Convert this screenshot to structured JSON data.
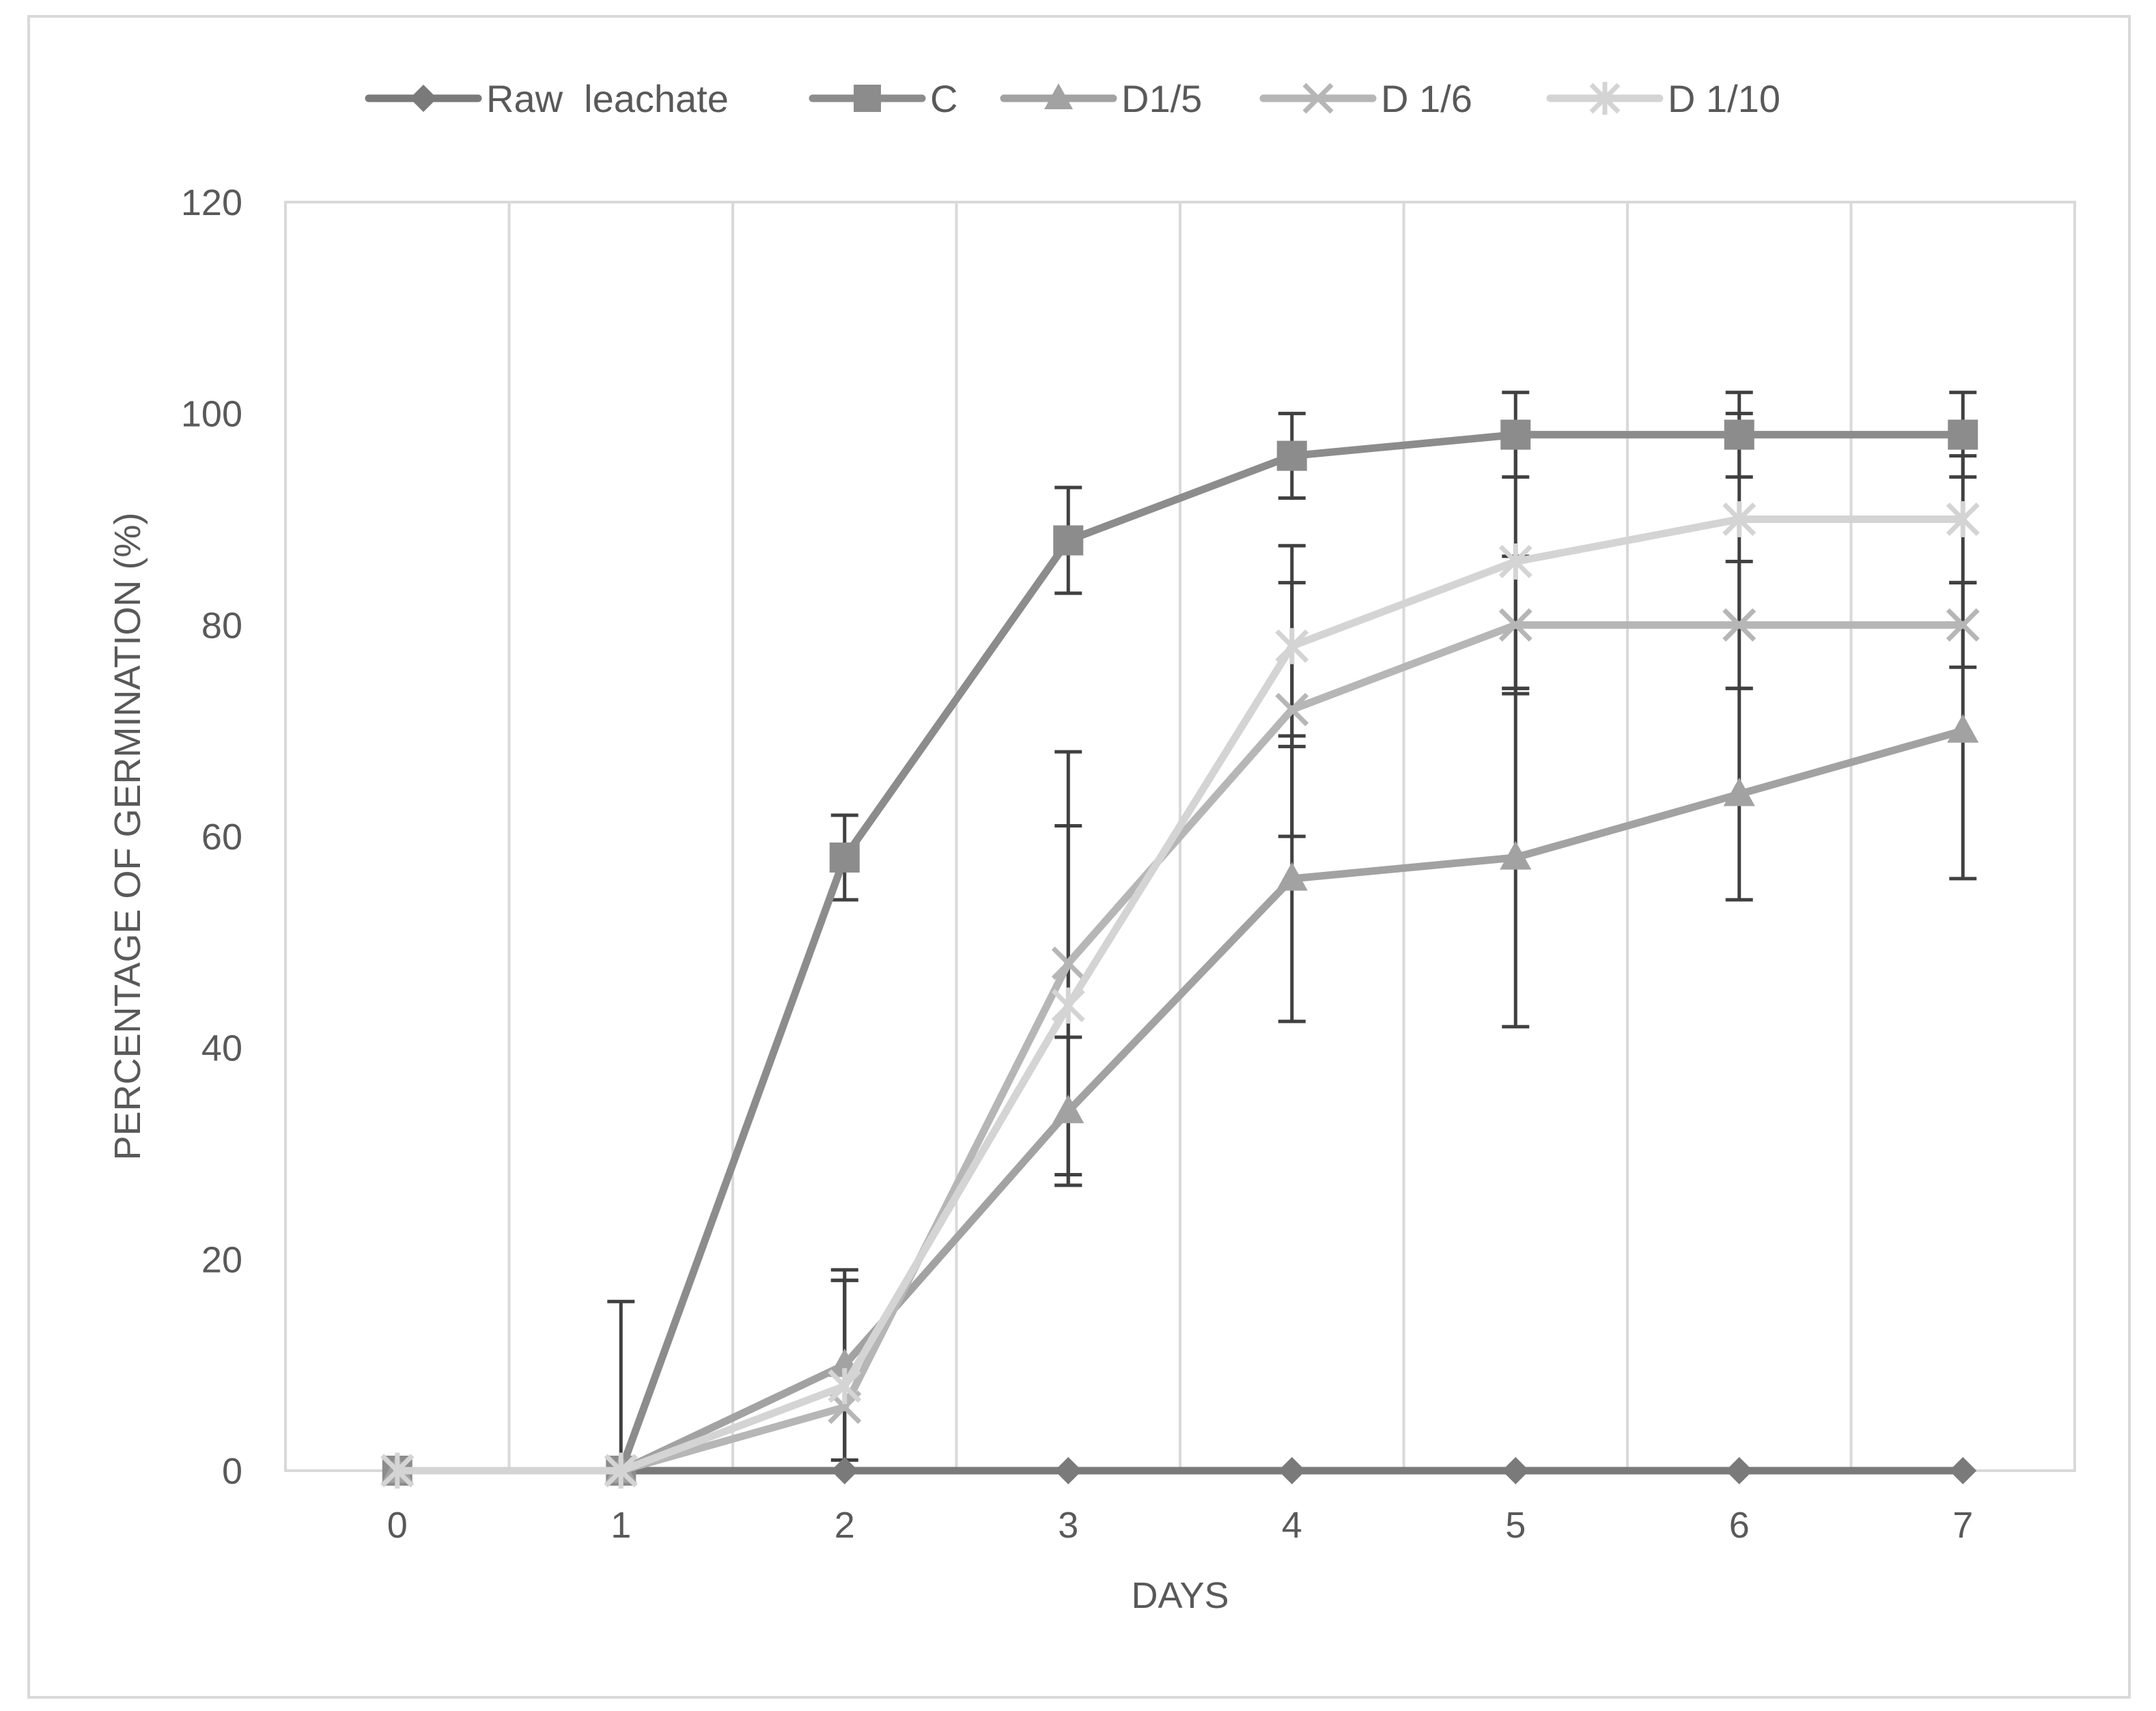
{
  "chart_data": {
    "type": "line",
    "title": "",
    "xlabel": "DAYS",
    "ylabel": "PERCENTAGE OF GERMINATION (%)",
    "xlim": [
      -0.5,
      7.5
    ],
    "ylim": [
      0,
      120
    ],
    "x": [
      0,
      1,
      2,
      3,
      4,
      5,
      6,
      7
    ],
    "x_ticks": [
      "0",
      "1",
      "2",
      "3",
      "4",
      "5",
      "6",
      "7"
    ],
    "y_ticks": [
      "0",
      "20",
      "40",
      "60",
      "80",
      "100",
      "120"
    ],
    "y_tick_values": [
      0,
      20,
      40,
      60,
      80,
      100,
      120
    ],
    "grid": "vertical",
    "legend": "top",
    "series": [
      {
        "name": "Raw  leachate",
        "marker": "diamond",
        "color": "#7a7a7a",
        "values": [
          0,
          0,
          0,
          0,
          0,
          0,
          0,
          0
        ],
        "errors": [
          0,
          0,
          0,
          0,
          0,
          0,
          0,
          0
        ]
      },
      {
        "name": "C",
        "marker": "square",
        "color": "#8c8c8c",
        "values": [
          0,
          0,
          58,
          88,
          96,
          98,
          98,
          98
        ],
        "errors": [
          0,
          0,
          4,
          5,
          4,
          4,
          4,
          4
        ]
      },
      {
        "name": "D1/5",
        "marker": "triangle",
        "color": "#a2a2a2",
        "values": [
          0,
          0,
          10,
          34,
          56,
          58,
          64,
          70
        ],
        "errors": [
          0,
          0,
          9,
          7,
          13.5,
          16,
          10,
          14
        ]
      },
      {
        "name": "D 1/6",
        "marker": "x",
        "color": "#b6b6b6",
        "values": [
          0,
          0,
          6,
          48,
          72,
          80,
          80,
          80
        ],
        "errors": [
          0,
          0,
          12,
          20,
          12,
          6.5,
          6,
          4
        ]
      },
      {
        "name": "D 1/10",
        "marker": "star",
        "color": "#d4d4d4",
        "values": [
          0,
          0,
          8,
          44,
          78,
          86,
          90,
          90
        ],
        "errors": [
          0,
          16,
          10,
          17,
          9.5,
          12,
          10,
          6
        ]
      }
    ]
  }
}
